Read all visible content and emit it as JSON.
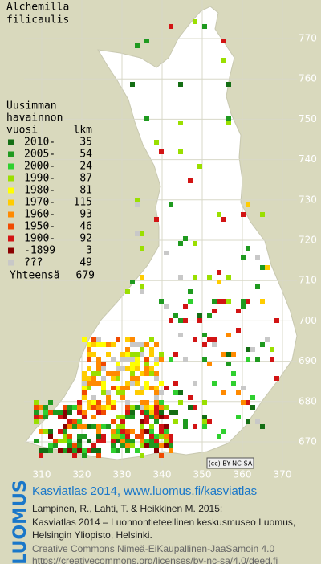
{
  "title": [
    "Alchemilla",
    "filicaulis"
  ],
  "legend": {
    "header": [
      "Uusimman",
      "havainnon",
      "vuosi"
    ],
    "count_header": "lkm",
    "entries": [
      {
        "label": "2010-",
        "count": "35",
        "color": "#146e14"
      },
      {
        "label": "2005-",
        "count": "54",
        "color": "#1f9a1f"
      },
      {
        "label": "2000-",
        "count": "24",
        "color": "#2fd02f"
      },
      {
        "label": "1990-",
        "count": "87",
        "color": "#9adf00"
      },
      {
        "label": "1980-",
        "count": "81",
        "color": "#ffff00"
      },
      {
        "label": "1970-",
        "count": "115",
        "color": "#ffcc00"
      },
      {
        "label": "1960-",
        "count": "93",
        "color": "#ff8a00"
      },
      {
        "label": "1950-",
        "count": "46",
        "color": "#f04a00"
      },
      {
        "label": "1900-",
        "count": "92",
        "color": "#d21414"
      },
      {
        "label": "-1899",
        "count": "3",
        "color": "#8a0000"
      },
      {
        "label": "???",
        "count": "49",
        "color": "#c8c8c8"
      }
    ],
    "total_label": "Yhteensä",
    "total": "679"
  },
  "grid": {
    "x_ticks": [
      "310",
      "320",
      "330",
      "340",
      "350",
      "360",
      "370"
    ],
    "y_ticks": [
      "770",
      "760",
      "750",
      "740",
      "730",
      "720",
      "710",
      "700",
      "690",
      "680",
      "670"
    ]
  },
  "license_badge": "(cc) BY-NC-SA",
  "footer": {
    "logo": "LUOMUS",
    "heading": "Kasviatlas 2014, www.luomus.fi/kasviatlas",
    "citation": [
      "Lampinen, R., Lahti, T. & Heikkinen M. 2015:",
      "Kasviatlas 2014 – Luonnontieteellinen keskusmuseo Luomus,",
      "Helsingin Yliopisto, Helsinki."
    ],
    "license": [
      "Creative Commons Nimeä-EiKaupallinen-JaaSamoin 4.0",
      "https://creativecommons.org/licenses/by-nc-sa/4.0/deed.fi"
    ]
  }
}
